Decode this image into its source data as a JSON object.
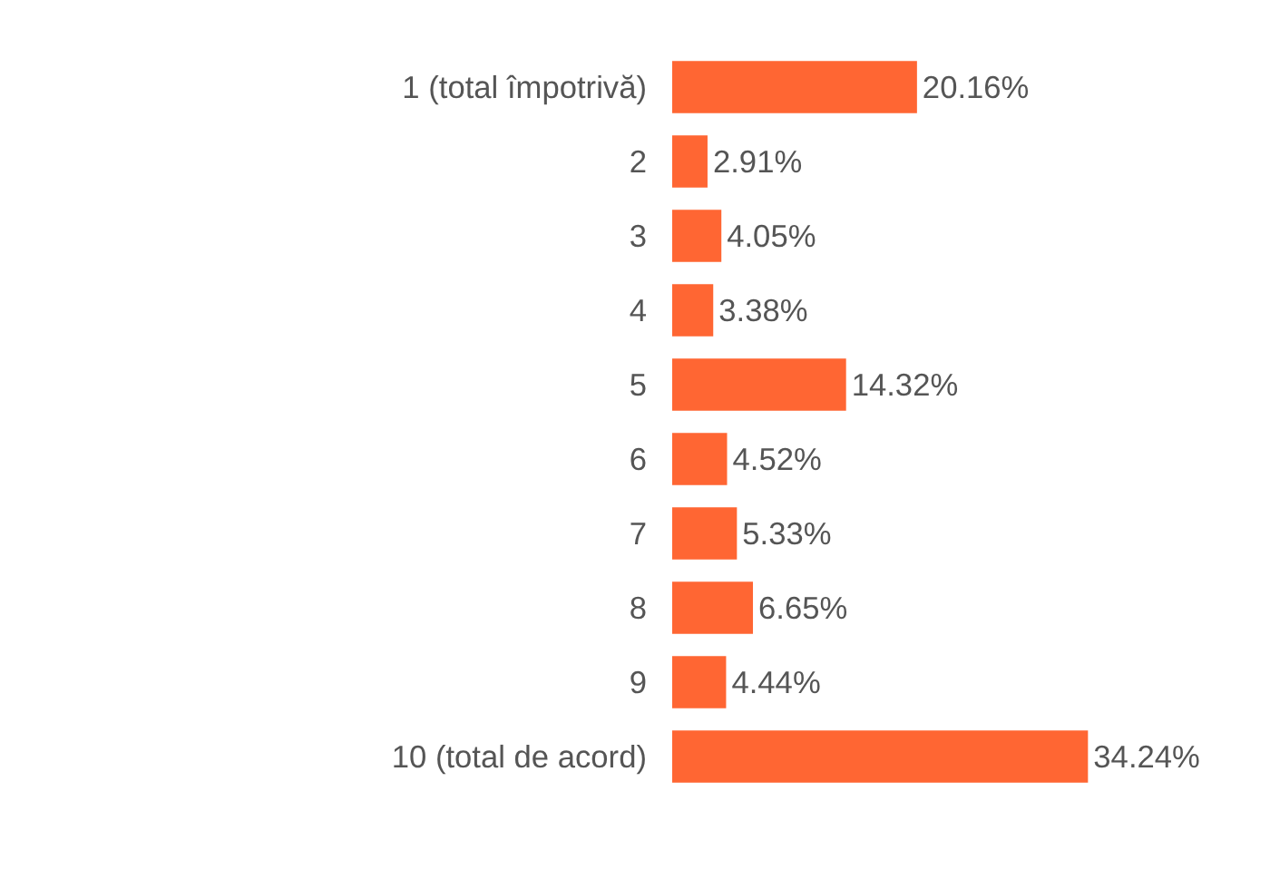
{
  "chart_data": {
    "type": "bar",
    "orientation": "horizontal",
    "categories": [
      "1 (total împotrivă)",
      "2",
      "3",
      "4",
      "5",
      "6",
      "7",
      "8",
      "9",
      "10 (total de acord)"
    ],
    "values": [
      20.16,
      2.91,
      4.05,
      3.38,
      14.32,
      4.52,
      5.33,
      6.65,
      4.44,
      34.24
    ],
    "value_labels": [
      "20.16%",
      "2.91%",
      "4.05%",
      "3.38%",
      "14.32%",
      "4.52%",
      "5.33%",
      "6.65%",
      "4.44%",
      "34.24%"
    ],
    "color": "#ff6633"
  }
}
